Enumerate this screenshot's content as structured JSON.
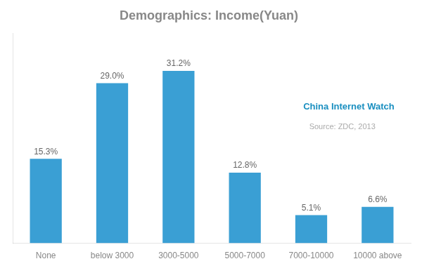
{
  "chart_data": {
    "type": "bar",
    "title": "Demographics: Income(Yuan)",
    "categories": [
      "None",
      "below 3000",
      "3000-5000",
      "5000-7000",
      "7000-10000",
      "10000 above"
    ],
    "values": [
      15.3,
      29.0,
      31.2,
      12.8,
      5.1,
      6.6
    ],
    "value_labels": [
      "15.3%",
      "29.0%",
      "31.2%",
      "12.8%",
      "5.1%",
      "6.6%"
    ],
    "data_labels": true,
    "color": "#3a9fd4",
    "ylim": [
      0,
      38
    ],
    "tick_labels": "x",
    "grid": false,
    "annotations": [
      "China Internet Watch",
      "Source: ZDC, 2013"
    ]
  }
}
